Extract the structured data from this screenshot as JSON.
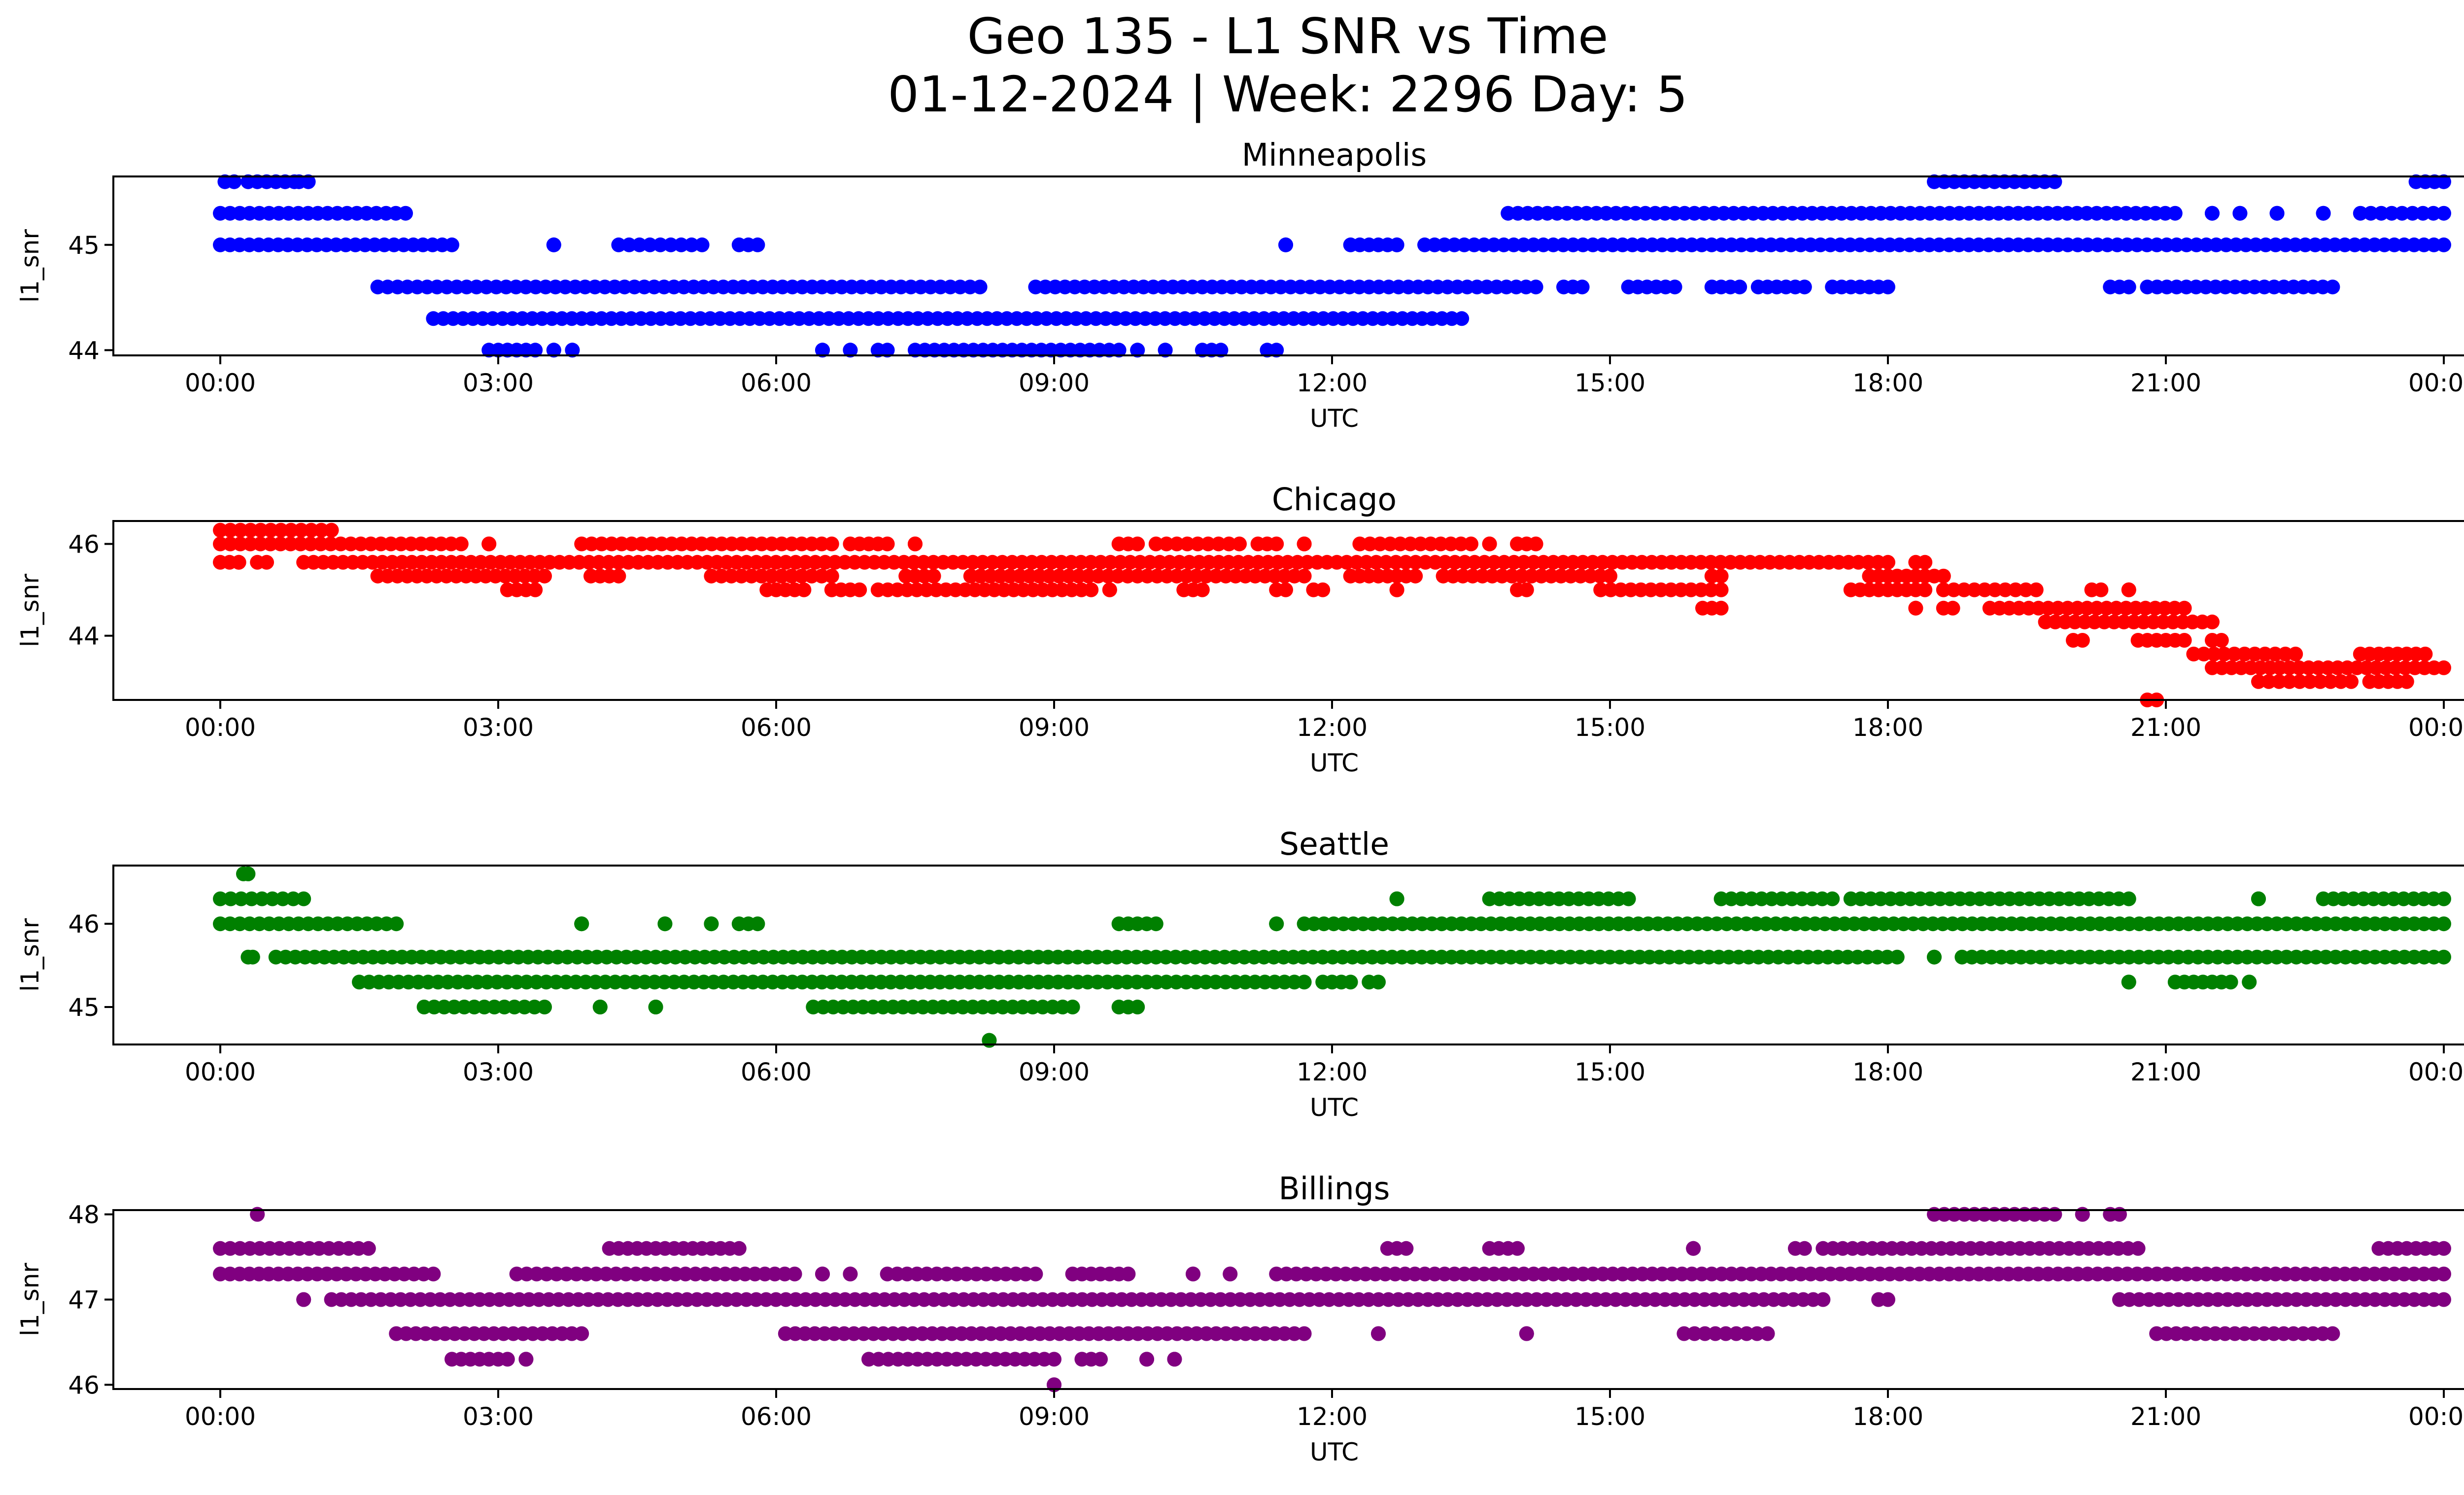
{
  "figure": {
    "title_line1": "Geo 135 - L1 SNR vs Time",
    "title_line2": "01-12-2024 | Week: 2296 Day: 5"
  },
  "chart_data": [
    {
      "type": "scatter",
      "title": "Minneapolis",
      "xlabel": "UTC",
      "ylabel": "l1_snr",
      "color": "#0000ff",
      "xlim": [
        "00:00",
        "24:00"
      ],
      "ylim": [
        43.95,
        45.65
      ],
      "xticks": [
        "00:00",
        "03:00",
        "06:00",
        "09:00",
        "12:00",
        "15:00",
        "18:00",
        "21:00",
        "00:00"
      ],
      "yticks": [
        44,
        45
      ],
      "series": [
        {
          "values": [
            {
              "y": 45.6,
              "x_ranges": [
                [
                  0.05,
                  0.15
                ],
                [
                  0.3,
                  0.8
                ],
                [
                  0.85,
                  0.95
                ],
                [
                  18.5,
                  19.8
                ],
                [
                  23.7,
                  24.0
                ]
              ]
            },
            {
              "y": 45.3,
              "x_ranges": [
                [
                  0.0,
                  2.0
                ],
                [
                  13.9,
                  21.1
                ],
                [
                  21.5,
                  21.5
                ],
                [
                  21.8,
                  21.8
                ],
                [
                  22.2,
                  22.2
                ],
                [
                  22.7,
                  22.7
                ],
                [
                  23.1,
                  24.0
                ]
              ]
            },
            {
              "y": 45.0,
              "x_ranges": [
                [
                  0.0,
                  2.5
                ],
                [
                  3.6,
                  3.6
                ],
                [
                  4.3,
                  5.2
                ],
                [
                  5.6,
                  5.8
                ],
                [
                  11.5,
                  11.5
                ],
                [
                  12.2,
                  12.6
                ],
                [
                  12.7,
                  12.7
                ],
                [
                  13.0,
                  24.0
                ]
              ]
            },
            {
              "y": 44.6,
              "x_ranges": [
                [
                  1.7,
                  8.2
                ],
                [
                  8.8,
                  14.2
                ],
                [
                  14.5,
                  14.7
                ],
                [
                  15.2,
                  15.7
                ],
                [
                  16.1,
                  16.4
                ],
                [
                  16.6,
                  17.1
                ],
                [
                  17.4,
                  18.0
                ],
                [
                  20.4,
                  20.6
                ],
                [
                  20.8,
                  22.8
                ]
              ]
            },
            {
              "y": 44.3,
              "x_ranges": [
                [
                  2.3,
                  13.4
                ]
              ]
            },
            {
              "y": 44.0,
              "x_ranges": [
                [
                  2.9,
                  3.1
                ],
                [
                  3.1,
                  3.4
                ],
                [
                  3.6,
                  3.6
                ],
                [
                  3.8,
                  3.8
                ],
                [
                  6.5,
                  6.5
                ],
                [
                  6.8,
                  6.8
                ],
                [
                  7.1,
                  7.2
                ],
                [
                  7.5,
                  9.7
                ],
                [
                  9.9,
                  9.9
                ],
                [
                  10.2,
                  10.2
                ],
                [
                  10.6,
                  10.8
                ],
                [
                  11.3,
                  11.4
                ]
              ]
            }
          ]
        }
      ]
    },
    {
      "type": "scatter",
      "title": "Chicago",
      "xlabel": "UTC",
      "ylabel": "l1_snr",
      "color": "#ff0000",
      "xlim": [
        "00:00",
        "24:00"
      ],
      "ylim": [
        42.6,
        46.5
      ],
      "xticks": [
        "00:00",
        "03:00",
        "06:00",
        "09:00",
        "12:00",
        "15:00",
        "18:00",
        "21:00",
        "00:00"
      ],
      "yticks": [
        44,
        46
      ],
      "series": [
        {
          "values": [
            {
              "y": 46.3,
              "x_ranges": [
                [
                  0.0,
                  1.2
                ]
              ]
            },
            {
              "y": 46.0,
              "x_ranges": [
                [
                  0.0,
                  2.6
                ],
                [
                  2.9,
                  2.9
                ],
                [
                  3.9,
                  6.6
                ],
                [
                  6.8,
                  7.2
                ],
                [
                  7.5,
                  7.5
                ],
                [
                  9.7,
                  9.9
                ],
                [
                  10.1,
                  11.0
                ],
                [
                  11.2,
                  11.4
                ],
                [
                  11.7,
                  11.7
                ],
                [
                  12.3,
                  13.5
                ],
                [
                  13.7,
                  13.7
                ],
                [
                  14.0,
                  14.2
                ]
              ]
            },
            {
              "y": 45.6,
              "x_ranges": [
                [
                  0.0,
                  0.1
                ],
                [
                  0.2,
                  0.2
                ],
                [
                  0.4,
                  0.5
                ],
                [
                  0.9,
                  18.0
                ],
                [
                  18.3,
                  18.4
                ]
              ]
            },
            {
              "y": 45.3,
              "x_ranges": [
                [
                  1.7,
                  3.5
                ],
                [
                  4.0,
                  4.3
                ],
                [
                  5.3,
                  6.6
                ],
                [
                  7.4,
                  7.7
                ],
                [
                  8.1,
                  11.7
                ],
                [
                  12.2,
                  12.9
                ],
                [
                  13.2,
                  15.0
                ],
                [
                  16.1,
                  16.2
                ],
                [
                  17.8,
                  18.6
                ]
              ]
            },
            {
              "y": 45.0,
              "x_ranges": [
                [
                  3.1,
                  3.4
                ],
                [
                  5.9,
                  6.3
                ],
                [
                  6.6,
                  6.9
                ],
                [
                  7.1,
                  9.4
                ],
                [
                  9.6,
                  9.6
                ],
                [
                  10.4,
                  10.6
                ],
                [
                  11.4,
                  11.5
                ],
                [
                  11.8,
                  11.9
                ],
                [
                  12.7,
                  12.7
                ],
                [
                  14.0,
                  14.1
                ],
                [
                  14.9,
                  16.2
                ],
                [
                  17.6,
                  18.4
                ],
                [
                  18.6,
                  19.6
                ],
                [
                  20.2,
                  20.3
                ],
                [
                  20.6,
                  20.6
                ]
              ]
            },
            {
              "y": 44.6,
              "x_ranges": [
                [
                  16.0,
                  16.2
                ],
                [
                  18.3,
                  18.3
                ],
                [
                  18.6,
                  18.7
                ],
                [
                  19.1,
                  21.2
                ]
              ]
            },
            {
              "y": 44.3,
              "x_ranges": [
                [
                  19.7,
                  21.5
                ]
              ]
            },
            {
              "y": 43.9,
              "x_ranges": [
                [
                  20.0,
                  20.1
                ],
                [
                  20.7,
                  21.2
                ],
                [
                  21.5,
                  21.6
                ]
              ]
            },
            {
              "y": 43.6,
              "x_ranges": [
                [
                  21.3,
                  22.4
                ],
                [
                  23.1,
                  23.8
                ]
              ]
            },
            {
              "y": 43.3,
              "x_ranges": [
                [
                  21.5,
                  24.0
                ]
              ]
            },
            {
              "y": 43.0,
              "x_ranges": [
                [
                  22.0,
                  23.0
                ],
                [
                  23.2,
                  23.6
                ]
              ]
            },
            {
              "y": 42.6,
              "x_ranges": [
                [
                  20.8,
                  20.9
                ]
              ]
            }
          ]
        }
      ]
    },
    {
      "type": "scatter",
      "title": "Seattle",
      "xlabel": "UTC",
      "ylabel": "l1_snr",
      "color": "#008000",
      "xlim": [
        "00:00",
        "24:00"
      ],
      "ylim": [
        44.55,
        46.7
      ],
      "xticks": [
        "00:00",
        "03:00",
        "06:00",
        "09:00",
        "12:00",
        "15:00",
        "18:00",
        "21:00",
        "00:00"
      ],
      "yticks": [
        45,
        46
      ],
      "series": [
        {
          "values": [
            {
              "y": 46.6,
              "x_ranges": [
                [
                  0.25,
                  0.3
                ]
              ]
            },
            {
              "y": 46.3,
              "x_ranges": [
                [
                  0.0,
                  0.9
                ],
                [
                  12.7,
                  12.7
                ],
                [
                  13.7,
                  15.2
                ],
                [
                  16.2,
                  17.4
                ],
                [
                  17.6,
                  20.6
                ],
                [
                  22.0,
                  22.0
                ],
                [
                  22.7,
                  24.0
                ]
              ]
            },
            {
              "y": 46.0,
              "x_ranges": [
                [
                  0.0,
                  1.9
                ],
                [
                  3.9,
                  3.9
                ],
                [
                  4.8,
                  4.8
                ],
                [
                  5.3,
                  5.3
                ],
                [
                  5.6,
                  5.8
                ],
                [
                  9.7,
                  10.1
                ],
                [
                  11.4,
                  11.4
                ],
                [
                  11.7,
                  24.0
                ]
              ]
            },
            {
              "y": 45.6,
              "x_ranges": [
                [
                  0.3,
                  0.35
                ],
                [
                  0.6,
                  2.8
                ],
                [
                  2.9,
                  11.9
                ],
                [
                  11.9,
                  18.1
                ],
                [
                  18.5,
                  18.5
                ],
                [
                  18.8,
                  24.0
                ]
              ]
            },
            {
              "y": 45.3,
              "x_ranges": [
                [
                  1.5,
                  11.7
                ],
                [
                  11.9,
                  12.2
                ],
                [
                  12.4,
                  12.5
                ],
                [
                  20.6,
                  20.6
                ],
                [
                  21.1,
                  21.7
                ],
                [
                  21.9,
                  21.9
                ]
              ]
            },
            {
              "y": 45.0,
              "x_ranges": [
                [
                  2.2,
                  3.5
                ],
                [
                  4.1,
                  4.1
                ],
                [
                  4.7,
                  4.7
                ],
                [
                  6.4,
                  9.2
                ],
                [
                  9.7,
                  9.9
                ]
              ]
            },
            {
              "y": 44.6,
              "x_ranges": [
                [
                  8.3,
                  8.3
                ]
              ]
            }
          ]
        }
      ]
    },
    {
      "type": "scatter",
      "title": "Billings",
      "xlabel": "UTC",
      "ylabel": "l1_snr",
      "color": "#800080",
      "xlim": [
        "00:00",
        "24:00"
      ],
      "ylim": [
        45.95,
        48.05
      ],
      "xticks": [
        "00:00",
        "03:00",
        "06:00",
        "09:00",
        "12:00",
        "15:00",
        "18:00",
        "21:00",
        "00:00"
      ],
      "yticks": [
        46,
        47,
        48
      ],
      "series": [
        {
          "values": [
            {
              "y": 48.0,
              "x_ranges": [
                [
                  0.4,
                  0.4
                ],
                [
                  18.5,
                  19.8
                ],
                [
                  20.1,
                  20.1
                ],
                [
                  20.4,
                  20.5
                ]
              ]
            },
            {
              "y": 47.6,
              "x_ranges": [
                [
                  0.0,
                  1.6
                ],
                [
                  4.2,
                  4.4
                ],
                [
                  4.5,
                  5.1
                ],
                [
                  5.2,
                  5.6
                ],
                [
                  12.6,
                  12.8
                ],
                [
                  13.7,
                  14.0
                ],
                [
                  15.9,
                  15.9
                ],
                [
                  17.0,
                  17.1
                ],
                [
                  17.3,
                  20.7
                ],
                [
                  23.3,
                  24.0
                ]
              ]
            },
            {
              "y": 47.3,
              "x_ranges": [
                [
                  0.0,
                  2.3
                ],
                [
                  3.2,
                  6.2
                ],
                [
                  6.5,
                  6.5
                ],
                [
                  6.8,
                  6.8
                ],
                [
                  7.2,
                  8.8
                ],
                [
                  9.2,
                  9.8
                ],
                [
                  10.5,
                  10.5
                ],
                [
                  10.9,
                  10.9
                ],
                [
                  11.4,
                  24.0
                ]
              ]
            },
            {
              "y": 47.0,
              "x_ranges": [
                [
                  0.9,
                  0.9
                ],
                [
                  1.2,
                  17.3
                ],
                [
                  17.9,
                  18.0
                ],
                [
                  20.5,
                  24.0
                ]
              ]
            },
            {
              "y": 46.6,
              "x_ranges": [
                [
                  1.9,
                  3.9
                ],
                [
                  6.1,
                  11.7
                ],
                [
                  12.5,
                  12.5
                ],
                [
                  14.1,
                  14.1
                ],
                [
                  15.8,
                  16.7
                ],
                [
                  20.9,
                  22.8
                ]
              ]
            },
            {
              "y": 46.3,
              "x_ranges": [
                [
                  2.5,
                  3.1
                ],
                [
                  3.3,
                  3.3
                ],
                [
                  7.0,
                  9.0
                ],
                [
                  9.3,
                  9.5
                ],
                [
                  10.0,
                  10.0
                ],
                [
                  10.3,
                  10.3
                ]
              ]
            },
            {
              "y": 46.0,
              "x_ranges": [
                [
                  9.0,
                  9.0
                ]
              ]
            }
          ]
        }
      ]
    }
  ]
}
